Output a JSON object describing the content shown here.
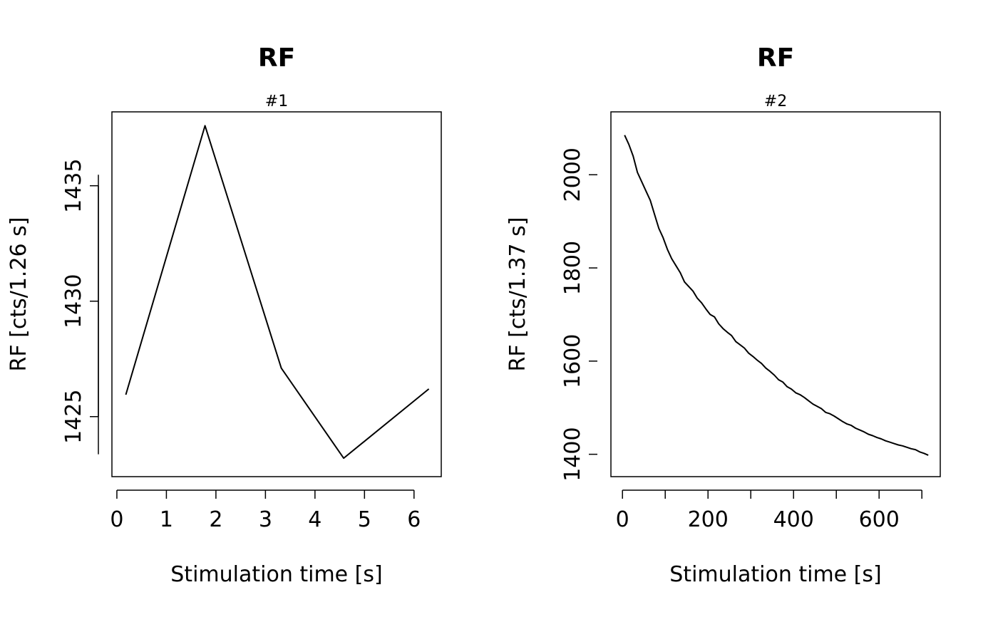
{
  "chart_data": [
    {
      "type": "line",
      "title": "RF",
      "subtitle": "#1",
      "xlabel": "Stimulation time [s]",
      "ylabel": "RF [cts/1.26 s]",
      "xlim": [
        -0.1,
        6.55
      ],
      "ylim": [
        1422.4,
        1438.2
      ],
      "xticks": [
        0,
        1,
        2,
        3,
        4,
        5,
        6
      ],
      "yticks": [
        1425,
        1430,
        1435
      ],
      "grid": false,
      "line_color": "#000000",
      "series": [
        {
          "x": [
            0.18,
            1.78,
            3.32,
            4.58,
            6.3
          ],
          "y": [
            1425.95,
            1437.6,
            1427.1,
            1423.2,
            1426.2
          ]
        }
      ]
    },
    {
      "type": "line",
      "title": "RF",
      "subtitle": "#2",
      "xlabel": "Stimulation time [s]",
      "ylabel": "RF [cts/1.37 s]",
      "xlim": [
        -27,
        743
      ],
      "ylim": [
        1352,
        2135
      ],
      "xticks": [
        0,
        100,
        200,
        300,
        400,
        500,
        600,
        700
      ],
      "xtick_labels": [
        "0",
        "",
        "200",
        "",
        "400",
        "",
        "600",
        ""
      ],
      "yticks": [
        1400,
        1600,
        1800,
        2000
      ],
      "grid": false,
      "line_color": "#000000",
      "series": [
        {
          "x": [
            5,
            15,
            25,
            35,
            45,
            55,
            65,
            75,
            85,
            95,
            105,
            115,
            125,
            135,
            145,
            155,
            165,
            175,
            185,
            195,
            205,
            215,
            225,
            235,
            245,
            255,
            265,
            275,
            285,
            295,
            305,
            315,
            325,
            335,
            345,
            355,
            365,
            375,
            385,
            395,
            405,
            415,
            425,
            435,
            445,
            455,
            465,
            475,
            485,
            495,
            505,
            515,
            525,
            535,
            545,
            555,
            565,
            575,
            585,
            595,
            605,
            615,
            625,
            635,
            645,
            655,
            665,
            675,
            685,
            695,
            705,
            715
          ],
          "y": [
            2085,
            2065,
            2040,
            2005,
            1985,
            1965,
            1945,
            1915,
            1885,
            1865,
            1840,
            1820,
            1805,
            1790,
            1770,
            1760,
            1750,
            1735,
            1725,
            1712,
            1700,
            1695,
            1680,
            1670,
            1662,
            1655,
            1642,
            1635,
            1628,
            1617,
            1610,
            1602,
            1595,
            1585,
            1578,
            1570,
            1560,
            1555,
            1545,
            1540,
            1532,
            1528,
            1522,
            1515,
            1508,
            1503,
            1498,
            1490,
            1487,
            1482,
            1476,
            1470,
            1465,
            1462,
            1456,
            1452,
            1448,
            1443,
            1440,
            1436,
            1433,
            1429,
            1426,
            1423,
            1420,
            1418,
            1415,
            1412,
            1410,
            1405,
            1402,
            1398
          ]
        }
      ]
    }
  ]
}
